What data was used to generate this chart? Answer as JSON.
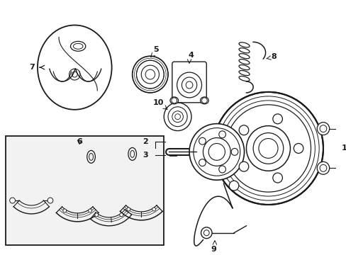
{
  "figsize": [
    4.89,
    3.6
  ],
  "dpi": 100,
  "background_color": "#ffffff",
  "line_color": "#1a1a1a",
  "box_fill": "#f0f0f0"
}
